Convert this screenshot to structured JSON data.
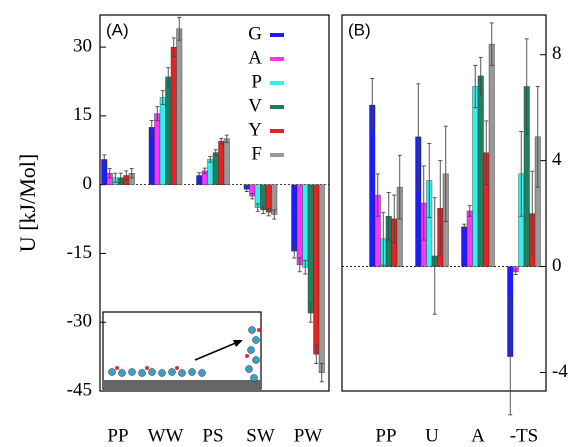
{
  "chart_data": [
    {
      "type": "bar",
      "panel_label": "(A)",
      "ylabel": "U [kJ/Mol]",
      "categories": [
        "PP",
        "WW",
        "PS",
        "SW",
        "PW"
      ],
      "ylim": [
        -45,
        37
      ],
      "yticks": [
        -45,
        -30,
        -15,
        0,
        15,
        30
      ],
      "series": [
        {
          "name": "G",
          "color": "#1c1cff",
          "values": [
            5.5,
            12.5,
            2,
            -1,
            -14.5
          ],
          "errors": [
            1,
            1.5,
            0.6,
            0.5,
            1.5
          ]
        },
        {
          "name": "A",
          "color": "#ff33ff",
          "values": [
            2.5,
            15.5,
            3,
            -2.5,
            -17.5
          ],
          "errors": [
            1,
            1.5,
            0.6,
            0.6,
            1.5
          ]
        },
        {
          "name": "P",
          "color": "#33f0f0",
          "values": [
            1.5,
            19,
            5.5,
            -5,
            -18
          ],
          "errors": [
            1,
            1.5,
            0.6,
            0.8,
            1.5
          ]
        },
        {
          "name": "V",
          "color": "#1f8060",
          "values": [
            1.5,
            23.5,
            7,
            -5.5,
            -28
          ],
          "errors": [
            1,
            2,
            0.6,
            0.8,
            2
          ]
        },
        {
          "name": "Y",
          "color": "#e62222",
          "values": [
            2,
            30,
            9.5,
            -6,
            -37
          ],
          "errors": [
            1,
            2,
            0.6,
            0.8,
            2
          ]
        },
        {
          "name": "F",
          "color": "#999999",
          "values": [
            2.5,
            34,
            10,
            -6.5,
            -41
          ],
          "errors": [
            1,
            2.5,
            0.8,
            1,
            2
          ]
        }
      ]
    },
    {
      "type": "bar",
      "panel_label": "(B)",
      "categories": [
        "PP",
        "U",
        "A",
        "-TS"
      ],
      "ylim": [
        -4.7,
        9.5
      ],
      "yticks": [
        -4,
        0,
        4,
        8
      ],
      "series": [
        {
          "color": "#1c1cff",
          "values": [
            6.1,
            4.9,
            1.5,
            -3.4
          ],
          "errors": [
            1,
            2,
            0.1,
            2.2
          ]
        },
        {
          "color": "#ff33ff",
          "values": [
            2.7,
            2.4,
            2.1,
            -0.2
          ],
          "errors": [
            0.8,
            1.4,
            0.2,
            0.1
          ]
        },
        {
          "color": "#33f0f0",
          "values": [
            1.05,
            3.25,
            6.8,
            3.5
          ],
          "errors": [
            1,
            1.4,
            0.8,
            1.6
          ]
        },
        {
          "color": "#1f8060",
          "values": [
            1.9,
            0.4,
            7.2,
            6.8
          ],
          "errors": [
            0.9,
            2.2,
            0.7,
            1.8
          ]
        },
        {
          "color": "#e62222",
          "values": [
            1.8,
            2.2,
            4.3,
            2.0
          ],
          "errors": [
            0.9,
            1.8,
            1.2,
            1.6
          ]
        },
        {
          "color": "#999999",
          "values": [
            3.0,
            3.5,
            8.4,
            4.9
          ],
          "errors": [
            1.2,
            1.8,
            0.8,
            1.9
          ]
        }
      ]
    }
  ]
}
